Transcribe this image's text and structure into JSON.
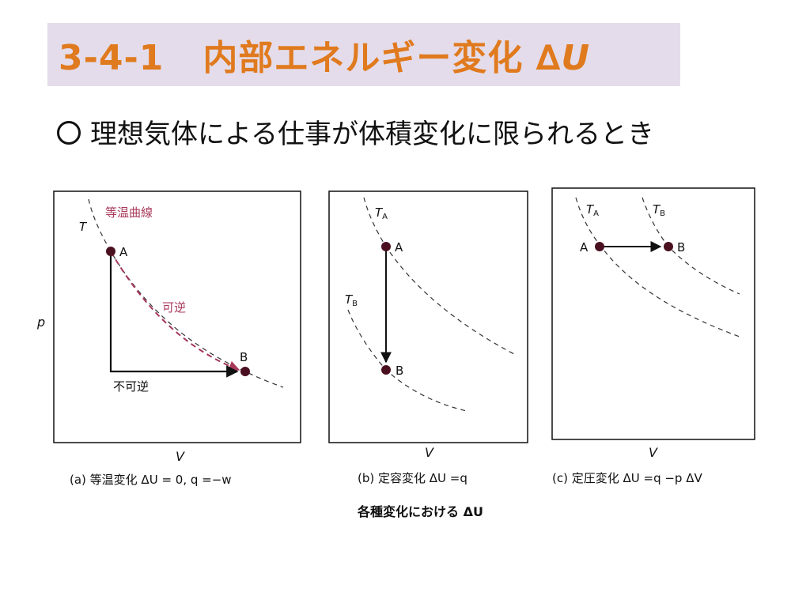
{
  "title": {
    "number": "3-4-1",
    "text": "内部エネルギー変化",
    "symbol": "∆",
    "symbol_var": "U"
  },
  "subtitle": "理想気体による仕事が体積変化に限られるとき",
  "figure": {
    "caption": "各種変化における ΔU",
    "panels": [
      {
        "caption": "(a) 等温変化 ΔU = 0, q =−w",
        "axis_x": "V",
        "axis_y": "p",
        "temp_label": "T",
        "isotherm_label": "等温曲線",
        "reversible_label": "可逆",
        "irreversible_label": "不可逆",
        "point_a": "A",
        "point_b": "B"
      },
      {
        "caption": "(b) 定容変化 ΔU =q",
        "axis_x": "V",
        "temp_a_label": "T",
        "temp_a_sub": "A",
        "temp_b_label": "T",
        "temp_b_sub": "B",
        "point_a": "A",
        "point_b": "B"
      },
      {
        "caption": "(c) 定圧変化 ΔU =q −p ΔV",
        "axis_x": "V",
        "temp_a_label": "T",
        "temp_a_sub": "A",
        "temp_b_label": "T",
        "temp_b_sub": "B",
        "point_a": "A",
        "point_b": "B"
      }
    ]
  },
  "colors": {
    "title_text": "#e07a1e",
    "title_bg": "#e4dcea",
    "reversible": "#a8385a",
    "point": "#4a1020"
  }
}
